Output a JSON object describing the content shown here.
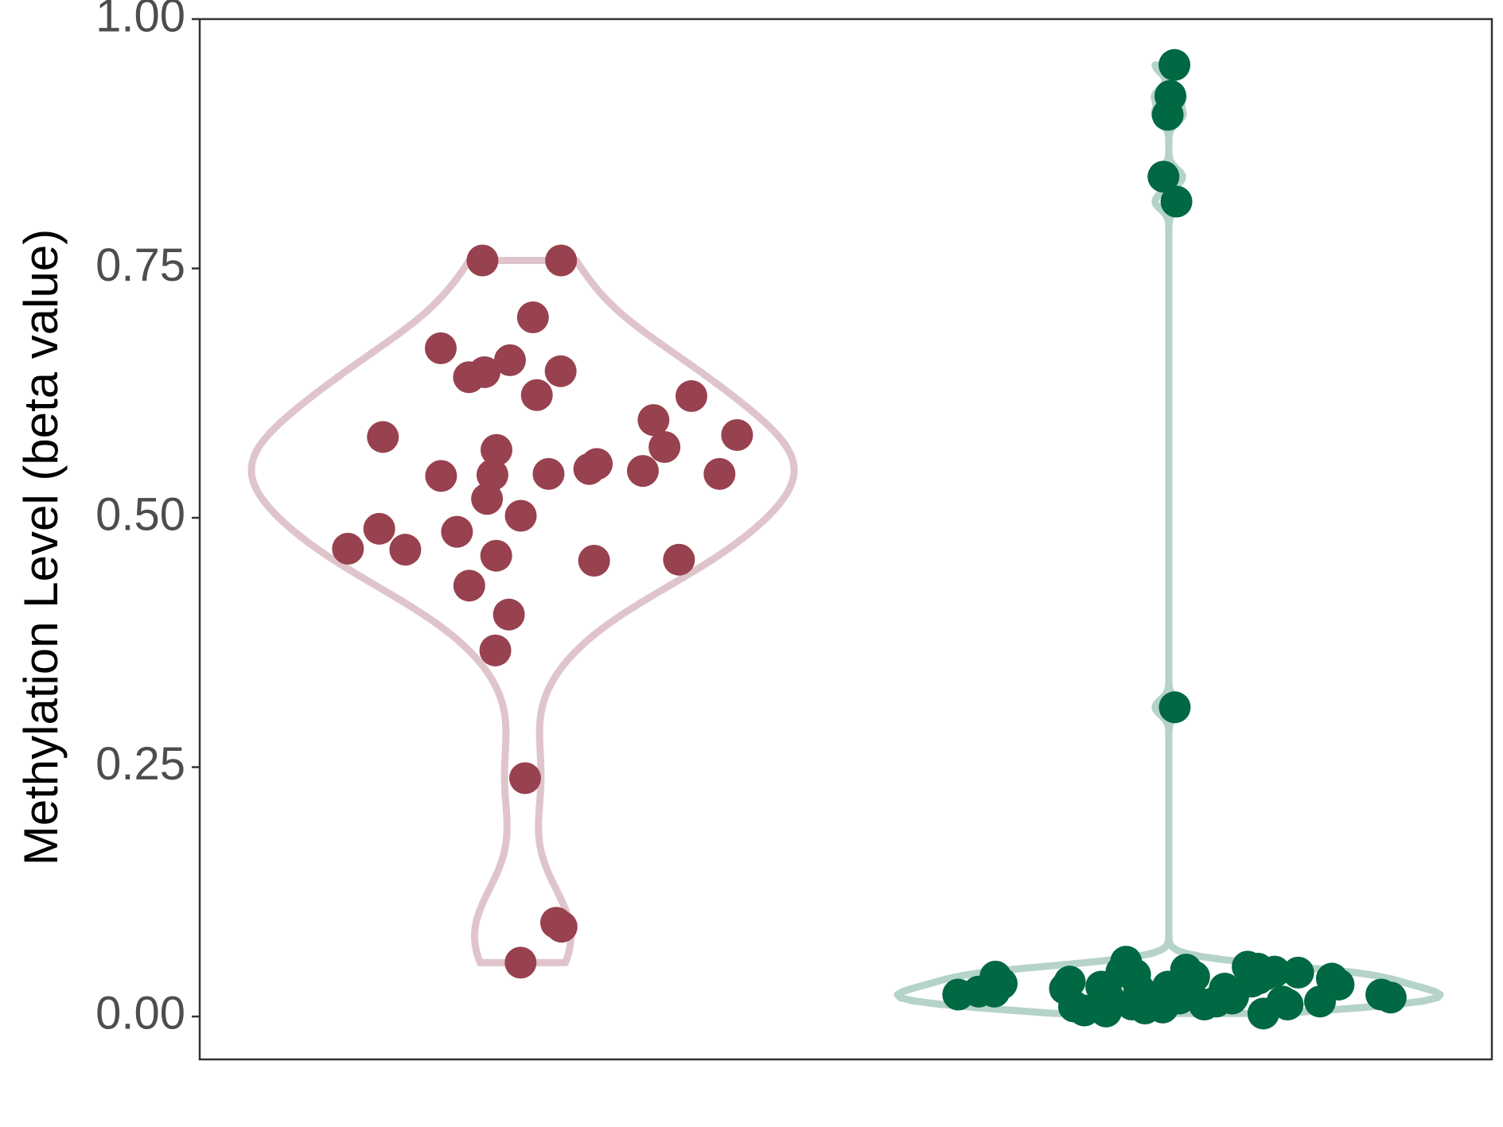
{
  "chart_data": {
    "type": "violin",
    "ylabel": "Methylation Level (beta value)",
    "ylim": [
      -0.043,
      1.0
    ],
    "yticks": [
      {
        "value": 0,
        "label": "0.00"
      },
      {
        "value": 0.25,
        "label": "0.25"
      },
      {
        "value": 0.5,
        "label": "0.50"
      },
      {
        "value": 0.75,
        "label": "0.75"
      },
      {
        "value": 1,
        "label": "1.00"
      }
    ],
    "series": [
      {
        "color": "#98414f",
        "violin_color": "#dfc5cb",
        "values": [
          0.758,
          0.758,
          0.701,
          0.646,
          0.658,
          0.647,
          0.67,
          0.641,
          0.623,
          0.622,
          0.598,
          0.581,
          0.583,
          0.571,
          0.568,
          0.544,
          0.543,
          0.549,
          0.542,
          0.547,
          0.544,
          0.554,
          0.519,
          0.489,
          0.486,
          0.502,
          0.469,
          0.468,
          0.462,
          0.458,
          0.457,
          0.432,
          0.403,
          0.367,
          0.239,
          0.09,
          0.094,
          0.054
        ]
      },
      {
        "color": "#006842",
        "violin_color": "#b5d3c8",
        "values": [
          0.954,
          0.923,
          0.904,
          0.842,
          0.817,
          0.31,
          0.025,
          0.018,
          0.02,
          0.04,
          0.012,
          0.015,
          0.042,
          0.045,
          0.03,
          0.008,
          0.005,
          0.003,
          0.035,
          0.05,
          0.048,
          0.022,
          0.028,
          0.038,
          0.01,
          0.015,
          0.055,
          0.032,
          0.006,
          0.045,
          0.047,
          0.02,
          0.012,
          0.04,
          0.025,
          0.018,
          0.022,
          0.035,
          0.028,
          0.042,
          0.015,
          0.02,
          0.025,
          0.03,
          0.012,
          0.038,
          0.033,
          0.027,
          0.019,
          0.044,
          0.009
        ]
      }
    ]
  }
}
